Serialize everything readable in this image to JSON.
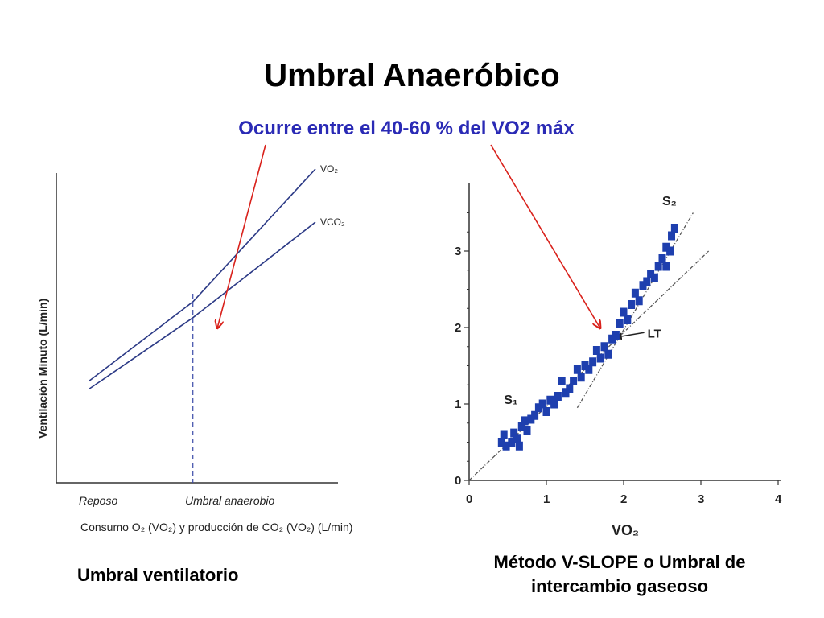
{
  "slide": {
    "title": "Umbral Anaeróbico",
    "subtitle": "Ocurre entre el 40-60 % del VO2 máx",
    "caption_left": "Umbral ventilatorio",
    "caption_right_line1": "Método V-SLOPE o Umbral de",
    "caption_right_line2": "intercambio gaseoso"
  },
  "colors": {
    "title": "#000000",
    "subtitle": "#2a2ab5",
    "line": "#2c3a86",
    "arrow": "#d9211b",
    "marker": "#1e3fae",
    "dashed_guide": "#3a4aa8"
  },
  "chart_data": [
    {
      "type": "line",
      "title": "",
      "ylabel": "Ventilación Minuto (L/min)",
      "xlabel": "Consumo O₂ (VO₂) y producción de CO₂ (VO₂) (L/min)",
      "x_tick_labels": [
        "Reposo",
        "Umbral anaerobio"
      ],
      "series": [
        {
          "name": "VO₂",
          "x": [
            0.0,
            0.46,
            1.0
          ],
          "y": [
            0.2,
            0.5,
            1.0
          ]
        },
        {
          "name": "VCO₂",
          "x": [
            0.0,
            0.46,
            1.0
          ],
          "y": [
            0.17,
            0.44,
            0.8
          ]
        }
      ],
      "annotation": "Umbral anaerobio",
      "threshold_x": 0.46,
      "grid": false
    },
    {
      "type": "scatter",
      "title": "",
      "xlabel": "VO₂",
      "ylabel": "",
      "xlim": [
        0,
        4
      ],
      "ylim": [
        0,
        3.8
      ],
      "x_ticks": [
        0,
        1,
        2,
        3,
        4
      ],
      "y_ticks": [
        0,
        1,
        2,
        3
      ],
      "lines": [
        {
          "name": "S₁",
          "from": [
            0,
            0
          ],
          "to": [
            3.1,
            3.0
          ]
        },
        {
          "name": "S₂",
          "from": [
            1.4,
            0.95
          ],
          "to": [
            2.9,
            3.5
          ]
        }
      ],
      "annotation": "LT",
      "annotation_point": [
        1.85,
        1.85
      ],
      "points": [
        [
          0.42,
          0.5
        ],
        [
          0.45,
          0.6
        ],
        [
          0.48,
          0.45
        ],
        [
          0.55,
          0.5
        ],
        [
          0.58,
          0.62
        ],
        [
          0.62,
          0.55
        ],
        [
          0.65,
          0.45
        ],
        [
          0.68,
          0.7
        ],
        [
          0.72,
          0.78
        ],
        [
          0.75,
          0.65
        ],
        [
          0.8,
          0.8
        ],
        [
          0.85,
          0.85
        ],
        [
          0.9,
          0.95
        ],
        [
          0.95,
          1.0
        ],
        [
          1.0,
          0.9
        ],
        [
          1.05,
          1.05
        ],
        [
          1.1,
          1.0
        ],
        [
          1.15,
          1.1
        ],
        [
          1.2,
          1.3
        ],
        [
          1.25,
          1.15
        ],
        [
          1.3,
          1.2
        ],
        [
          1.35,
          1.3
        ],
        [
          1.4,
          1.45
        ],
        [
          1.45,
          1.35
        ],
        [
          1.5,
          1.5
        ],
        [
          1.55,
          1.45
        ],
        [
          1.6,
          1.55
        ],
        [
          1.65,
          1.7
        ],
        [
          1.7,
          1.6
        ],
        [
          1.75,
          1.75
        ],
        [
          1.8,
          1.65
        ],
        [
          1.85,
          1.85
        ],
        [
          1.9,
          1.9
        ],
        [
          1.95,
          2.05
        ],
        [
          2.0,
          2.2
        ],
        [
          2.05,
          2.1
        ],
        [
          2.1,
          2.3
        ],
        [
          2.15,
          2.45
        ],
        [
          2.2,
          2.35
        ],
        [
          2.25,
          2.55
        ],
        [
          2.3,
          2.6
        ],
        [
          2.35,
          2.7
        ],
        [
          2.4,
          2.65
        ],
        [
          2.45,
          2.8
        ],
        [
          2.5,
          2.9
        ],
        [
          2.55,
          3.05
        ],
        [
          2.6,
          3.0
        ],
        [
          2.62,
          3.2
        ],
        [
          2.66,
          3.3
        ],
        [
          2.55,
          2.8
        ]
      ],
      "grid": false
    }
  ]
}
